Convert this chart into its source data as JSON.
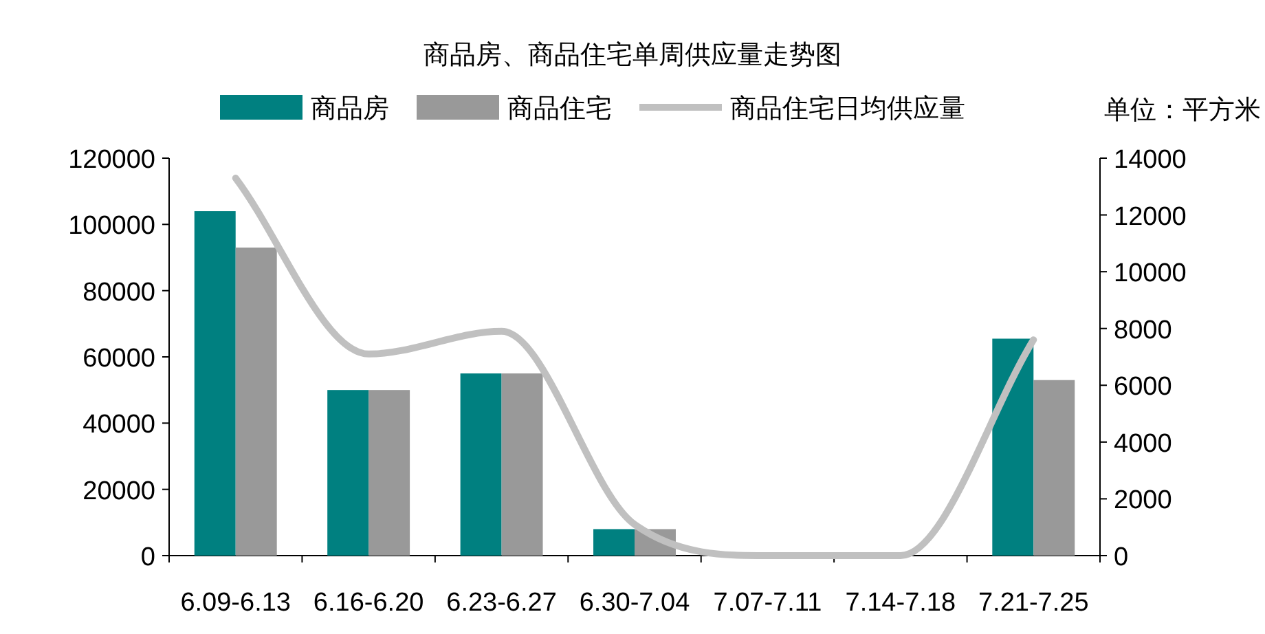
{
  "chart_data": {
    "type": "bar",
    "title": "商品房、商品住宅单周供应量走势图",
    "y2label": "单位：平方米",
    "categories": [
      "6.09-6.13",
      "6.16-6.20",
      "6.23-6.27",
      "6.30-7.04",
      "7.07-7.11",
      "7.14-7.18",
      "7.21-7.25"
    ],
    "series": [
      {
        "name": "商品房",
        "color": "#008080",
        "values": [
          104000,
          50000,
          55000,
          8000,
          0,
          0,
          65500
        ]
      },
      {
        "name": "商品住宅",
        "color": "#999999",
        "values": [
          93000,
          50000,
          55000,
          8000,
          0,
          0,
          53000
        ]
      },
      {
        "name": "商品住宅日均供应量",
        "type": "line",
        "axis": "y2",
        "color": "#c0c0c0",
        "values": [
          13300,
          7100,
          7900,
          1100,
          0,
          0,
          7600
        ]
      }
    ],
    "ylim": [
      0,
      120000
    ],
    "yticks": [
      0,
      20000,
      40000,
      60000,
      80000,
      100000,
      120000
    ],
    "y2lim": [
      0,
      14000
    ],
    "y2ticks": [
      0,
      2000,
      4000,
      6000,
      8000,
      10000,
      12000,
      14000
    ],
    "grid": false,
    "legend": "top"
  }
}
